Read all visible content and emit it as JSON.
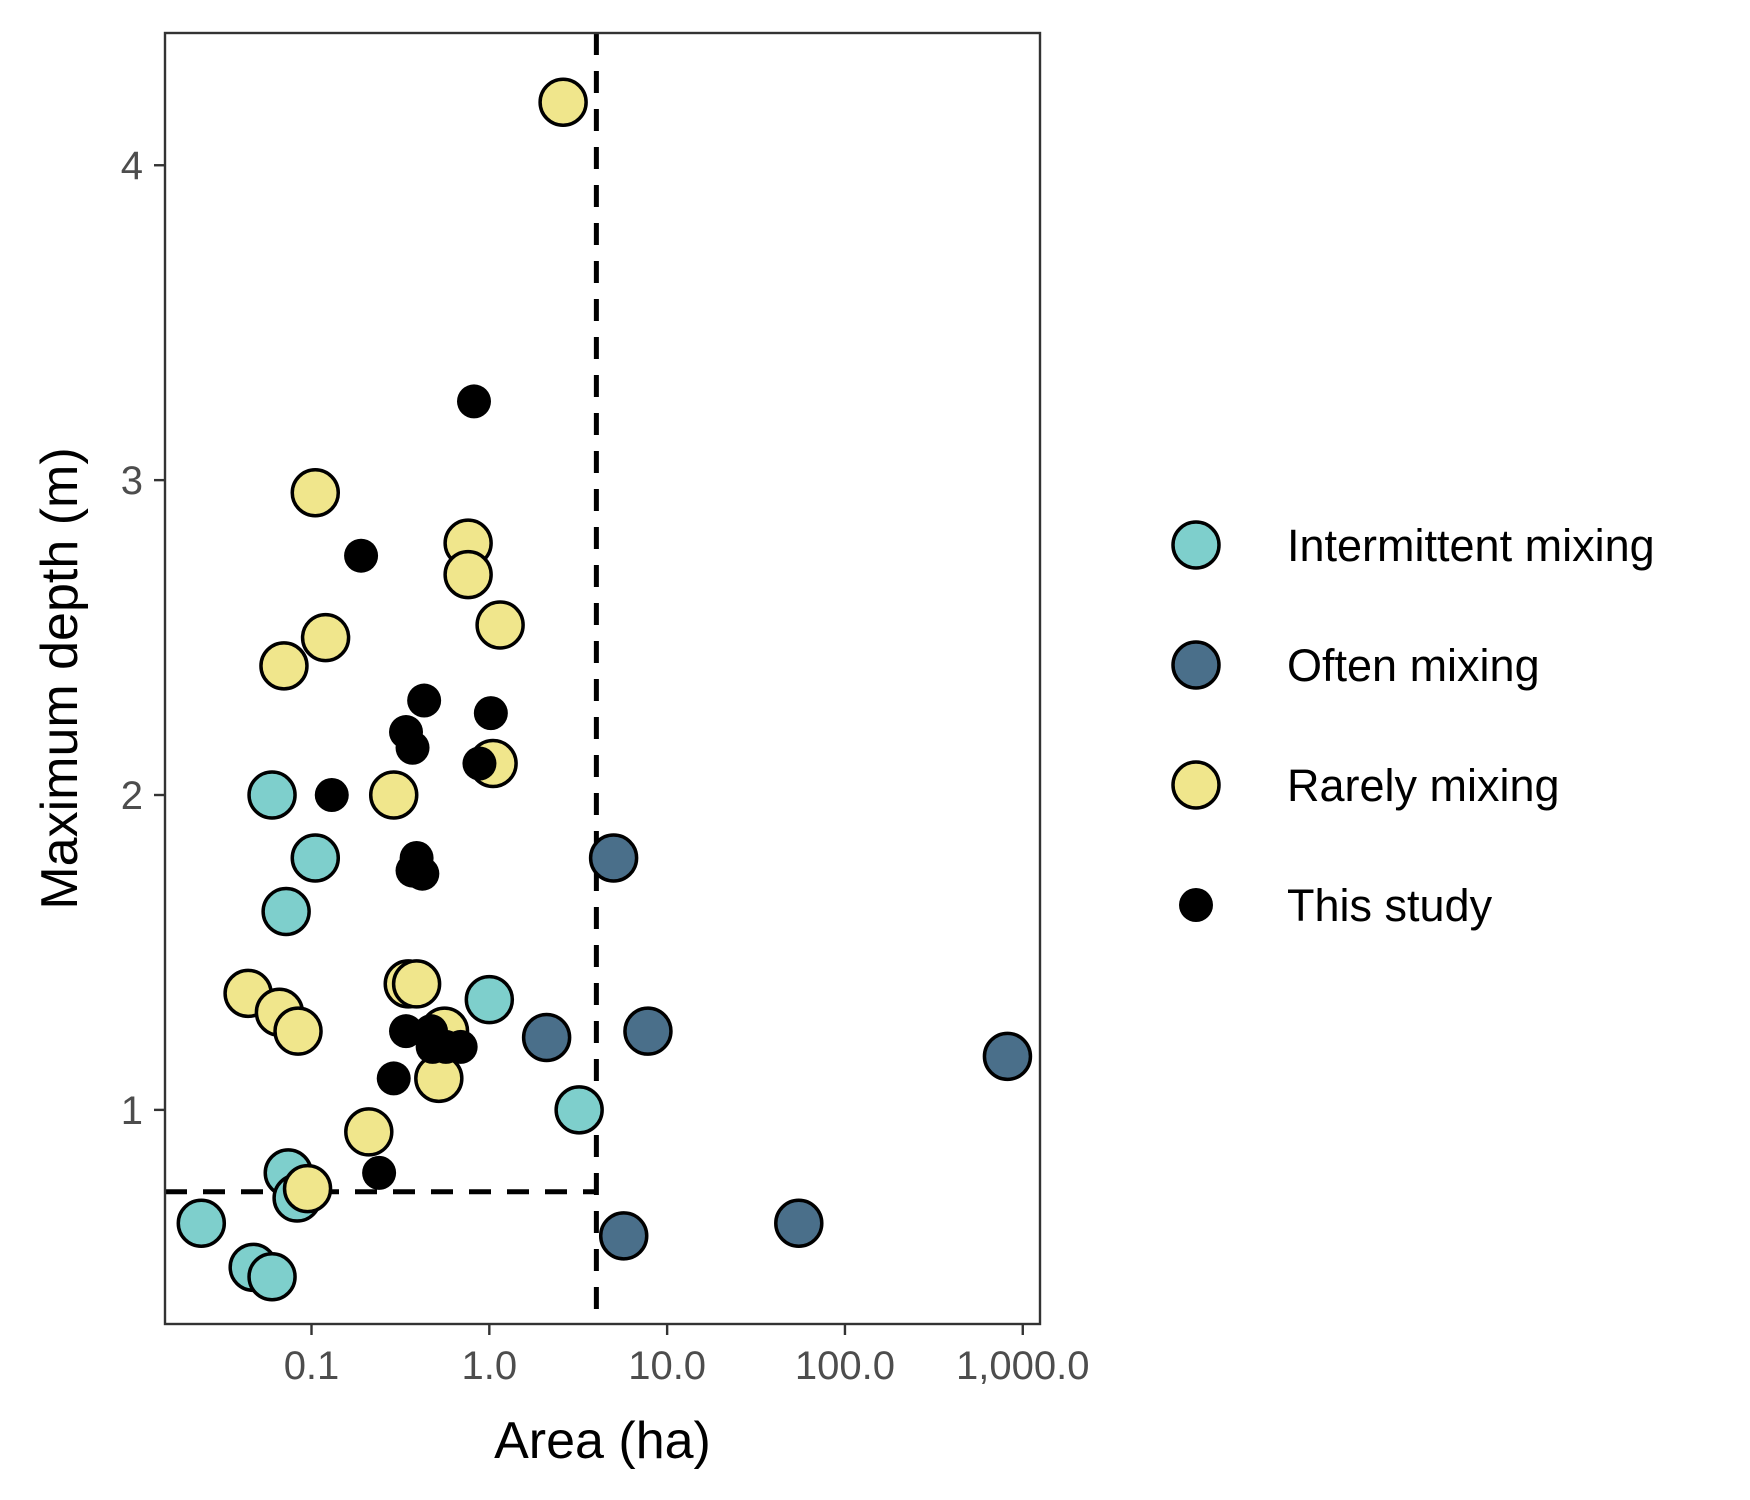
{
  "chart_data": {
    "type": "scatter",
    "xlabel": "Area (ha)",
    "ylabel": "Maximum depth (m)",
    "x_scale": "log10",
    "xlim": [
      0.015,
      1250
    ],
    "ylim": [
      0.32,
      4.42
    ],
    "x_ticks": [
      {
        "value": 0.1,
        "label": "0.1"
      },
      {
        "value": 1,
        "label": "1.0"
      },
      {
        "value": 10,
        "label": "10.0"
      },
      {
        "value": 100,
        "label": "100.0"
      },
      {
        "value": 1000,
        "label": "1,000.0"
      }
    ],
    "y_ticks": [
      {
        "value": 1,
        "label": "1"
      },
      {
        "value": 2,
        "label": "2"
      },
      {
        "value": 3,
        "label": "3"
      },
      {
        "value": 4,
        "label": "4"
      }
    ],
    "grid": false,
    "legend_position": "right",
    "reference_lines": [
      {
        "orientation": "vertical",
        "x": 4,
        "y_from": 0.32,
        "y_to": 4.42,
        "style": "dashed"
      },
      {
        "orientation": "horizontal",
        "y": 0.74,
        "x_from": 0.015,
        "x_to": 4,
        "style": "dashed"
      }
    ],
    "series": [
      {
        "name": "Intermittent mixing",
        "color": "#7ecfcc",
        "outline": true,
        "points": [
          {
            "x": 0.06,
            "y": 2.0
          },
          {
            "x": 0.105,
            "y": 1.8
          },
          {
            "x": 0.072,
            "y": 1.63
          },
          {
            "x": 1.0,
            "y": 1.35
          },
          {
            "x": 3.2,
            "y": 1.0
          },
          {
            "x": 0.074,
            "y": 0.8
          },
          {
            "x": 0.083,
            "y": 0.72
          },
          {
            "x": 0.024,
            "y": 0.64
          },
          {
            "x": 0.047,
            "y": 0.5
          },
          {
            "x": 0.06,
            "y": 0.47
          }
        ]
      },
      {
        "name": "Often mixing",
        "color": "#4a6f8a",
        "outline": true,
        "points": [
          {
            "x": 5.0,
            "y": 1.8
          },
          {
            "x": 2.1,
            "y": 1.23
          },
          {
            "x": 7.8,
            "y": 1.25
          },
          {
            "x": 820,
            "y": 1.17
          },
          {
            "x": 5.7,
            "y": 0.6
          },
          {
            "x": 55,
            "y": 0.64
          }
        ]
      },
      {
        "name": "Rarely mixing",
        "color": "#f0e68c",
        "outline": true,
        "points": [
          {
            "x": 2.6,
            "y": 4.2
          },
          {
            "x": 0.105,
            "y": 2.96
          },
          {
            "x": 0.76,
            "y": 2.8
          },
          {
            "x": 0.76,
            "y": 2.7
          },
          {
            "x": 1.15,
            "y": 2.54
          },
          {
            "x": 0.12,
            "y": 2.5
          },
          {
            "x": 0.07,
            "y": 2.41
          },
          {
            "x": 1.05,
            "y": 2.1
          },
          {
            "x": 0.29,
            "y": 2.0
          },
          {
            "x": 0.35,
            "y": 1.4
          },
          {
            "x": 0.39,
            "y": 1.4
          },
          {
            "x": 0.044,
            "y": 1.37
          },
          {
            "x": 0.066,
            "y": 1.31
          },
          {
            "x": 0.084,
            "y": 1.25
          },
          {
            "x": 0.56,
            "y": 1.25
          },
          {
            "x": 0.52,
            "y": 1.1
          },
          {
            "x": 0.21,
            "y": 0.93
          },
          {
            "x": 0.095,
            "y": 0.75
          }
        ]
      },
      {
        "name": "This study",
        "color": "#000000",
        "outline": false,
        "points": [
          {
            "x": 0.82,
            "y": 3.25
          },
          {
            "x": 0.19,
            "y": 2.76
          },
          {
            "x": 0.43,
            "y": 2.3
          },
          {
            "x": 1.02,
            "y": 2.26
          },
          {
            "x": 0.34,
            "y": 2.2
          },
          {
            "x": 0.37,
            "y": 2.15
          },
          {
            "x": 0.13,
            "y": 2.0
          },
          {
            "x": 0.88,
            "y": 2.1
          },
          {
            "x": 0.39,
            "y": 1.8
          },
          {
            "x": 0.37,
            "y": 1.76
          },
          {
            "x": 0.42,
            "y": 1.75
          },
          {
            "x": 0.34,
            "y": 1.25
          },
          {
            "x": 0.47,
            "y": 1.25
          },
          {
            "x": 0.48,
            "y": 1.2
          },
          {
            "x": 0.57,
            "y": 1.2
          },
          {
            "x": 0.69,
            "y": 1.2
          },
          {
            "x": 0.29,
            "y": 1.1
          },
          {
            "x": 0.24,
            "y": 0.8
          }
        ]
      }
    ]
  }
}
